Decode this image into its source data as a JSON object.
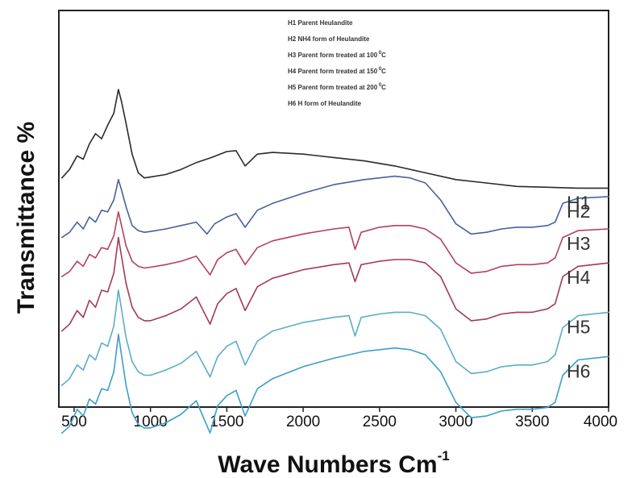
{
  "chart_data": {
    "type": "line",
    "title": "",
    "xlabel": "Wave Numbers Cm",
    "xlabel_sup": "-1",
    "ylabel": "Transmittance %",
    "xlim": [
      400,
      4000
    ],
    "x_ticks": [
      500,
      1000,
      1500,
      2000,
      2500,
      3000,
      3500,
      4000
    ],
    "grid": false,
    "y_ticks_shown": false,
    "legend_placement": "top-center",
    "legend": [
      {
        "text": "H1 Parent Heulandite",
        "sup": ""
      },
      {
        "text": "H2 NH4 form of Heulandite",
        "sup": ""
      },
      {
        "text": "H3 Parent form treated at 100",
        "sup": "0",
        "suffix": "C"
      },
      {
        "text": "H4 Parent form treated at 150",
        "sup": "0",
        "suffix": "C"
      },
      {
        "text": "H5 Parent form treated at 200",
        "sup": "0",
        "suffix": "C"
      },
      {
        "text": "H6 H form of Heulandite",
        "sup": "",
        "suffix": ""
      }
    ],
    "series": [
      {
        "name": "H1",
        "color": "#2a2a2a",
        "offset": 0,
        "x": [
          420,
          470,
          520,
          560,
          600,
          640,
          680,
          720,
          760,
          790,
          810,
          840,
          880,
          920,
          960,
          1000,
          1100,
          1200,
          1300,
          1400,
          1500,
          1560,
          1620,
          1700,
          1800,
          2000,
          2200,
          2400,
          2600,
          2800,
          3000,
          3200,
          3400,
          3600,
          3800,
          4000
        ],
        "y": [
          1.0,
          1.5,
          2.3,
          2.1,
          3.0,
          3.6,
          3.3,
          4.1,
          4.8,
          6.2,
          5.5,
          4.2,
          2.4,
          1.3,
          1.0,
          1.05,
          1.2,
          1.5,
          1.9,
          2.2,
          2.55,
          2.6,
          1.7,
          2.4,
          2.5,
          2.4,
          2.2,
          2.0,
          1.7,
          1.3,
          0.9,
          0.7,
          0.5,
          0.45,
          0.4,
          0.4
        ]
      },
      {
        "name": "H2",
        "color": "#4a5f9e",
        "offset": -3.1,
        "x": [
          420,
          470,
          520,
          560,
          600,
          640,
          680,
          720,
          760,
          790,
          810,
          840,
          880,
          920,
          960,
          1000,
          1100,
          1200,
          1300,
          1370,
          1420,
          1500,
          1560,
          1620,
          1700,
          1800,
          2000,
          2200,
          2400,
          2600,
          2700,
          2800,
          2900,
          3000,
          3100,
          3200,
          3300,
          3400,
          3500,
          3600,
          3650,
          3700,
          3800,
          4000
        ],
        "y": [
          0.6,
          0.9,
          1.5,
          1.1,
          1.8,
          1.5,
          2.2,
          2.1,
          2.8,
          4.0,
          3.4,
          2.4,
          1.3,
          1.0,
          0.9,
          0.95,
          1.1,
          1.3,
          1.5,
          0.8,
          1.4,
          1.8,
          2.0,
          1.2,
          2.2,
          2.6,
          3.2,
          3.7,
          4.0,
          4.2,
          4.1,
          3.8,
          2.8,
          1.4,
          0.8,
          0.9,
          1.1,
          1.2,
          1.2,
          1.3,
          1.5,
          2.6,
          2.9,
          3.0
        ]
      },
      {
        "name": "H3",
        "color": "#b5405e",
        "offset": -6.0,
        "x": [
          420,
          470,
          520,
          560,
          600,
          640,
          680,
          720,
          760,
          790,
          810,
          840,
          880,
          920,
          960,
          1000,
          1100,
          1200,
          1300,
          1390,
          1440,
          1500,
          1560,
          1620,
          1700,
          1800,
          2000,
          2200,
          2300,
          2340,
          2380,
          2500,
          2600,
          2700,
          2800,
          2900,
          3000,
          3100,
          3200,
          3300,
          3400,
          3500,
          3600,
          3650,
          3700,
          3800,
          4000
        ],
        "y": [
          1.2,
          1.5,
          2.1,
          1.8,
          2.5,
          2.3,
          2.9,
          2.8,
          3.6,
          5.0,
          4.2,
          3.0,
          2.1,
          1.8,
          1.7,
          1.75,
          1.9,
          2.1,
          2.4,
          1.3,
          2.2,
          2.6,
          2.8,
          1.9,
          2.9,
          3.3,
          3.7,
          4.0,
          4.1,
          2.8,
          3.8,
          4.1,
          4.2,
          4.2,
          4.0,
          3.4,
          2.0,
          1.4,
          1.5,
          1.8,
          1.9,
          1.9,
          2.0,
          2.3,
          3.5,
          3.9,
          4.0
        ]
      },
      {
        "name": "H4",
        "color": "#a33a54",
        "offset": -9.0,
        "x": [
          420,
          470,
          520,
          560,
          600,
          640,
          680,
          720,
          760,
          790,
          810,
          840,
          880,
          920,
          960,
          1000,
          1100,
          1200,
          1300,
          1390,
          1440,
          1500,
          1560,
          1620,
          1700,
          1800,
          2000,
          2200,
          2300,
          2340,
          2380,
          2500,
          2600,
          2700,
          2800,
          2900,
          3000,
          3100,
          3200,
          3300,
          3400,
          3500,
          3600,
          3650,
          3700,
          3800,
          4000
        ],
        "y": [
          1.0,
          1.4,
          2.2,
          1.8,
          2.8,
          2.4,
          3.4,
          3.3,
          4.4,
          6.5,
          5.4,
          3.8,
          2.4,
          1.8,
          1.6,
          1.6,
          1.9,
          2.3,
          3.0,
          1.4,
          2.6,
          3.2,
          3.5,
          2.2,
          3.6,
          4.1,
          4.6,
          4.9,
          5.0,
          3.9,
          4.9,
          5.1,
          5.2,
          5.2,
          5.0,
          4.2,
          2.3,
          1.6,
          1.7,
          2.0,
          2.1,
          2.1,
          2.3,
          2.6,
          4.2,
          4.8,
          5.0
        ]
      },
      {
        "name": "H5",
        "color": "#5aaec8",
        "offset": -12.0,
        "x": [
          420,
          470,
          520,
          560,
          600,
          640,
          680,
          720,
          760,
          790,
          810,
          840,
          880,
          920,
          960,
          1000,
          1100,
          1200,
          1300,
          1390,
          1440,
          1500,
          1560,
          1620,
          1700,
          1800,
          2000,
          2200,
          2300,
          2340,
          2380,
          2500,
          2600,
          2700,
          2800,
          2900,
          3000,
          3100,
          3200,
          3300,
          3400,
          3500,
          3600,
          3650,
          3700,
          3800,
          4000
        ],
        "y": [
          0.8,
          1.2,
          2.0,
          1.7,
          2.6,
          2.3,
          3.3,
          3.1,
          4.3,
          6.4,
          5.3,
          3.6,
          2.2,
          1.6,
          1.4,
          1.4,
          1.7,
          2.1,
          2.8,
          1.3,
          2.5,
          3.1,
          3.4,
          2.0,
          3.4,
          4.0,
          4.5,
          4.8,
          4.9,
          3.7,
          4.8,
          5.0,
          5.1,
          5.1,
          4.9,
          4.1,
          2.2,
          1.5,
          1.6,
          1.9,
          2.0,
          2.0,
          2.2,
          2.6,
          4.2,
          4.9,
          5.1
        ]
      },
      {
        "name": "H6",
        "color": "#3c9fc6",
        "offset": -15.0,
        "x": [
          420,
          470,
          520,
          560,
          600,
          640,
          680,
          720,
          760,
          790,
          810,
          840,
          880,
          920,
          960,
          1000,
          1100,
          1200,
          1300,
          1390,
          1440,
          1500,
          1560,
          1620,
          1700,
          1800,
          2000,
          2200,
          2400,
          2600,
          2700,
          2800,
          2900,
          3000,
          3100,
          3200,
          3300,
          3400,
          3500,
          3600,
          3650,
          3700,
          3800,
          4000
        ],
        "y": [
          1.0,
          1.4,
          2.4,
          2.0,
          3.0,
          2.7,
          3.6,
          3.5,
          4.6,
          6.8,
          5.6,
          3.8,
          2.2,
          1.5,
          1.3,
          1.3,
          1.6,
          2.1,
          2.9,
          1.0,
          2.6,
          3.2,
          3.5,
          2.0,
          3.6,
          4.2,
          4.9,
          5.4,
          5.8,
          6.0,
          5.9,
          5.6,
          4.6,
          2.8,
          1.9,
          2.0,
          2.3,
          2.4,
          2.4,
          2.5,
          2.8,
          4.4,
          5.3,
          5.5
        ]
      }
    ]
  }
}
